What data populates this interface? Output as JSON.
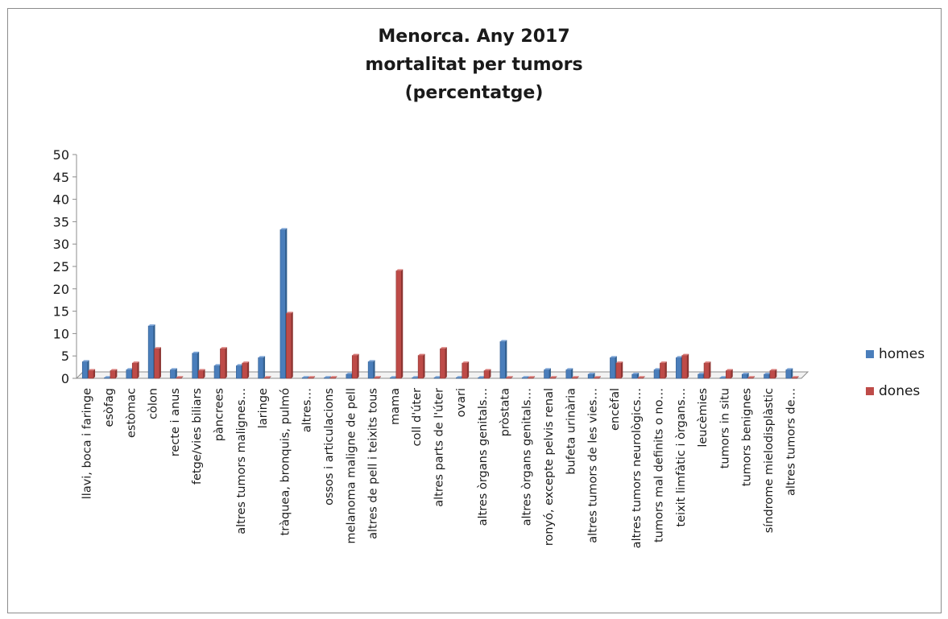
{
  "chart_data": {
    "type": "bar",
    "title_lines": [
      "Menorca. Any 2017",
      "mortalitat per tumors",
      "(percentatge)"
    ],
    "xlabel": "",
    "ylabel": "",
    "ylim": [
      0,
      50
    ],
    "y_ticks": [
      "0",
      "5",
      "10",
      "15",
      "20",
      "25",
      "30",
      "35",
      "40",
      "45",
      "50"
    ],
    "grid": false,
    "legend_position": "right",
    "categories": [
      "llavi, boca i faringe",
      "esòfag",
      "estòmac",
      "còlon",
      "recte i anus",
      "fetge/vies biliars",
      "pàncrees",
      "altres tumors malignes…",
      "laringe",
      "tràquea, bronquis, pulmó",
      "altres…",
      "ossos i articulacions",
      "melanoma maligne de pell",
      "altres de pell i teixits tous",
      "mama",
      "coll d'úter",
      "altres parts de l'úter",
      "ovari",
      "altres òrgans genitals…",
      "pròstata",
      "altres òrgans genitals…",
      "ronyó, excepte pelvis renal",
      "bufeta urinària",
      "altres tumors de les vies…",
      "encèfal",
      "altres tumors neurològics…",
      "tumors mal definits o no…",
      "teixit limfàtic i òrgans…",
      "leucèmies",
      "tumors in situ",
      "tumors benignes",
      "síndrome mielodisplàstic",
      "altres tumors de…"
    ],
    "series": [
      {
        "name": "homes",
        "color": "#4a7ebb",
        "values": [
          3.7,
          0,
          1.9,
          11.7,
          1.9,
          5.6,
          2.8,
          2.8,
          4.6,
          33.2,
          0,
          0,
          0.9,
          3.7,
          0,
          0,
          0,
          0,
          0,
          8.2,
          0,
          1.9,
          1.9,
          0.9,
          4.6,
          0.9,
          1.9,
          4.6,
          0.9,
          0,
          0.9,
          0.9,
          1.9
        ]
      },
      {
        "name": "dones",
        "color": "#be4b48",
        "values": [
          1.7,
          1.7,
          3.4,
          6.6,
          0,
          1.7,
          6.6,
          3.4,
          0,
          14.5,
          0,
          0,
          5.1,
          0,
          24,
          5.1,
          6.6,
          3.4,
          1.7,
          0,
          0,
          0,
          0,
          0,
          3.4,
          0,
          3.4,
          5.1,
          3.4,
          1.7,
          0,
          1.7,
          0
        ]
      }
    ]
  }
}
